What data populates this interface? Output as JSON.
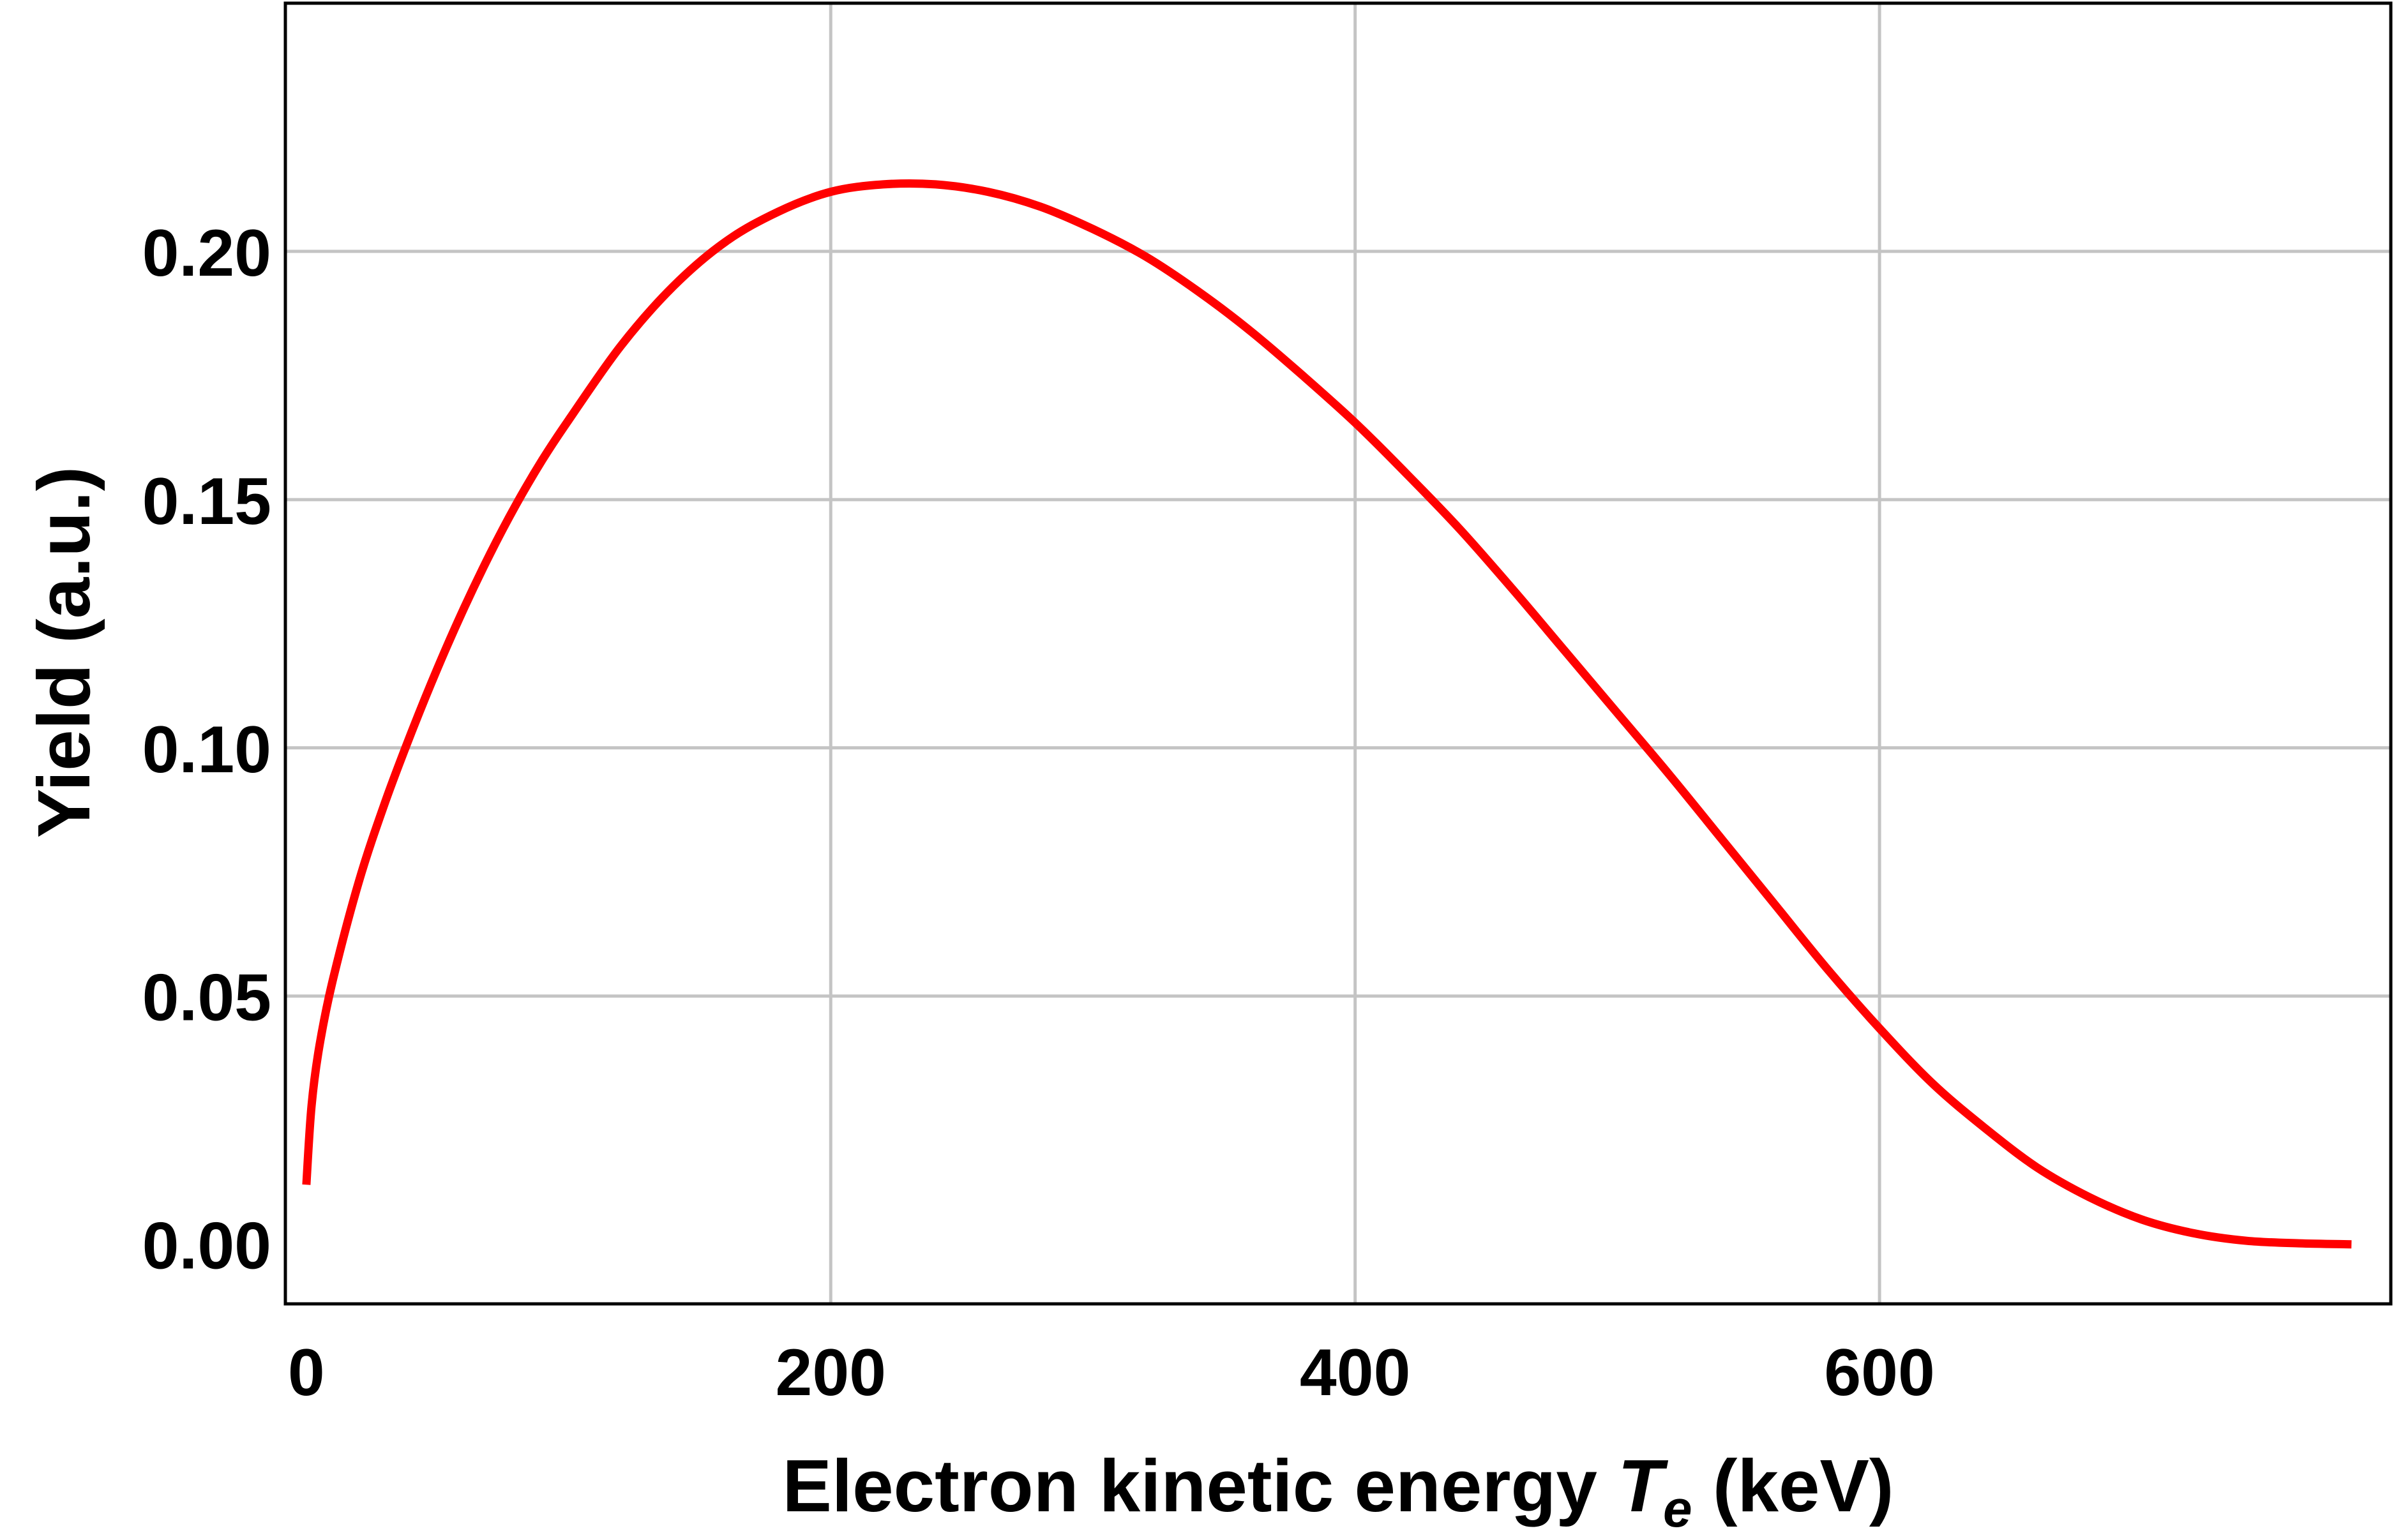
{
  "chart_data": {
    "type": "line",
    "xlabel_main": "Electron kinetic energy ",
    "xlabel_symbol": "T",
    "xlabel_subscript": "e",
    "xlabel_unit": " (keV)",
    "ylabel": "Yield (a.u.)",
    "xlim": [
      -8,
      795
    ],
    "ylim": [
      -0.012,
      0.25
    ],
    "x_ticks": [
      {
        "value": 0,
        "label": "0"
      },
      {
        "value": 200,
        "label": "200"
      },
      {
        "value": 400,
        "label": "400"
      },
      {
        "value": 600,
        "label": "600"
      }
    ],
    "y_ticks": [
      {
        "value": 0.0,
        "label": "0.00"
      },
      {
        "value": 0.05,
        "label": "0.05"
      },
      {
        "value": 0.1,
        "label": "0.10"
      },
      {
        "value": 0.15,
        "label": "0.15"
      },
      {
        "value": 0.2,
        "label": "0.20"
      }
    ],
    "grid": true,
    "series": [
      {
        "color": "#ff0000",
        "x": [
          0,
          2,
          5,
          10,
          20,
          30,
          40,
          50,
          60,
          70,
          80,
          90,
          100,
          120,
          140,
          160,
          180,
          200,
          220,
          240,
          260,
          280,
          300,
          320,
          340,
          360,
          380,
          400,
          420,
          440,
          460,
          480,
          500,
          520,
          540,
          560,
          580,
          600,
          620,
          640,
          660,
          680,
          700,
          720,
          740,
          760,
          780
        ],
        "y": [
          0.012,
          0.028,
          0.04,
          0.053,
          0.073,
          0.089,
          0.103,
          0.116,
          0.128,
          0.139,
          0.149,
          0.158,
          0.166,
          0.181,
          0.193,
          0.202,
          0.208,
          0.212,
          0.2135,
          0.2135,
          0.212,
          0.209,
          0.2045,
          0.199,
          0.192,
          0.184,
          0.175,
          0.1655,
          0.155,
          0.144,
          0.132,
          0.1195,
          0.107,
          0.0945,
          0.0815,
          0.0685,
          0.0555,
          0.0435,
          0.0325,
          0.0235,
          0.0155,
          0.0095,
          0.005,
          0.0022,
          0.0007,
          0.0002,
          0.0
        ]
      }
    ]
  }
}
